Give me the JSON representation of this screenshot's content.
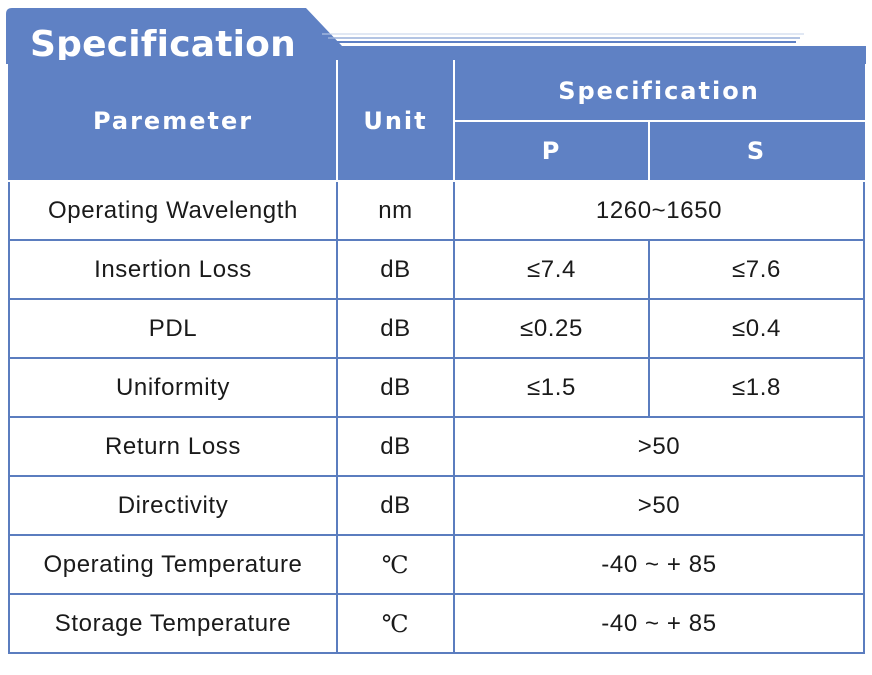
{
  "title": "Specification",
  "colors": {
    "header_bg": "#5f81c4",
    "border": "#5b7dbf",
    "header_text": "#ffffff",
    "body_text": "#1a1a1a"
  },
  "header": {
    "parameter": "Paremeter",
    "unit": "Unit",
    "specification": "Specification",
    "p": "P",
    "s": "S"
  },
  "rows": [
    {
      "parameter": "Operating Wavelength",
      "unit": "nm",
      "value": "1260~1650"
    },
    {
      "parameter": "Insertion Loss",
      "unit": "dB",
      "p": "≤7.4",
      "s": "≤7.6"
    },
    {
      "parameter": "PDL",
      "unit": "dB",
      "p": "≤0.25",
      "s": "≤0.4"
    },
    {
      "parameter": "Uniformity",
      "unit": "dB",
      "p": "≤1.5",
      "s": "≤1.8"
    },
    {
      "parameter": "Return Loss",
      "unit": "dB",
      "value": ">50"
    },
    {
      "parameter": "Directivity",
      "unit": "dB",
      "value": ">50"
    },
    {
      "parameter": "Operating Temperature",
      "unit": "℃",
      "value": "-40 ~ + 85"
    },
    {
      "parameter": "Storage Temperature",
      "unit": "℃",
      "value": "-40 ~ + 85"
    }
  ]
}
